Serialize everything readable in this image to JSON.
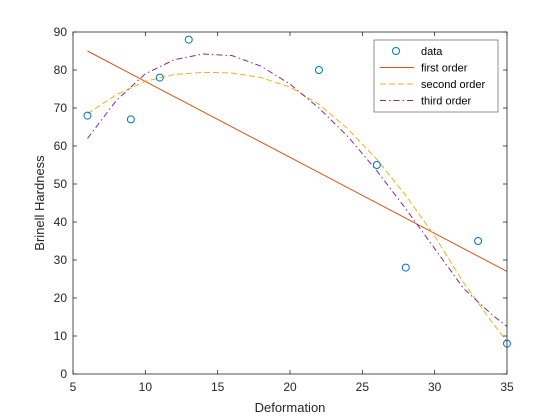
{
  "chart_data": {
    "type": "scatter",
    "title": "",
    "xlabel": "Deformation",
    "ylabel": "Brinell Hardness",
    "xlim": [
      5,
      35
    ],
    "ylim": [
      0,
      90
    ],
    "xticks": [
      5,
      10,
      15,
      20,
      25,
      30,
      35
    ],
    "yticks": [
      0,
      10,
      20,
      30,
      40,
      50,
      60,
      70,
      80,
      90
    ],
    "grid": false,
    "legend_position": "top-right",
    "data_points": {
      "name": "data",
      "color": "#0072BD",
      "x": [
        6,
        9,
        11,
        13,
        22,
        26,
        28,
        33,
        35
      ],
      "y": [
        68,
        67,
        78,
        88,
        80,
        55,
        28,
        35,
        8
      ]
    },
    "series": [
      {
        "name": "first order",
        "style": "solid",
        "color": "#D95319",
        "x": [
          6,
          35
        ],
        "y": [
          85,
          27
        ]
      },
      {
        "name": "second order",
        "style": "dashed",
        "color": "#EDB120",
        "x": [
          6,
          8,
          10,
          12,
          14,
          16,
          18,
          20,
          22,
          24,
          26,
          28,
          30,
          32,
          34,
          35
        ],
        "y": [
          68.5,
          73.5,
          77,
          78.8,
          79.4,
          79.2,
          78,
          75.5,
          71,
          64.5,
          56.5,
          47,
          36.3,
          24,
          13.5,
          8.5
        ]
      },
      {
        "name": "third order",
        "style": "dashdot",
        "color": "#7E2F8E",
        "x": [
          6,
          8,
          10,
          12,
          14,
          16,
          18,
          20,
          22,
          24,
          26,
          28,
          30,
          32,
          34,
          35
        ],
        "y": [
          62,
          72,
          79,
          82.7,
          84.2,
          83.8,
          81,
          76.3,
          70,
          62.5,
          53.5,
          43.5,
          33,
          22.5,
          15.5,
          12.5
        ]
      }
    ]
  }
}
